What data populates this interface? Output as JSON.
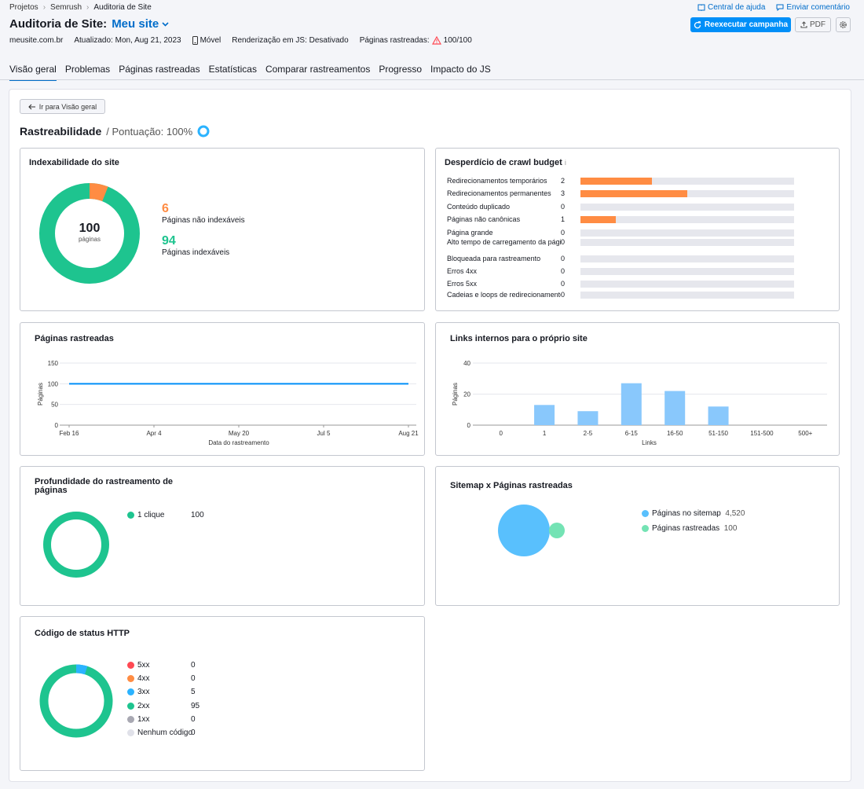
{
  "breadcrumb": [
    "Projetos",
    "Semrush",
    "Auditoria de Site"
  ],
  "top_links": {
    "help": "Central de ajuda",
    "feedback": "Enviar comentário"
  },
  "title": "Auditoria de Site:",
  "site_name": "Meu site",
  "meta": {
    "domain": "meusite.com.br",
    "updated": "Atualizado: Mon, Aug 21, 2023",
    "device": "Móvel",
    "js": "Renderização em JS: Desativado",
    "crawled_label": "Páginas rastreadas:",
    "crawled_value": "100/100"
  },
  "buttons": {
    "rerun": "Reexecutar campanha",
    "pdf": "PDF"
  },
  "tabs": [
    "Visão geral",
    "Problemas",
    "Páginas rastreadas",
    "Estatísticas",
    "Comparar rastreamentos",
    "Progresso",
    "Impacto do JS"
  ],
  "back": "Ir para Visão geral",
  "section": {
    "title": "Rastreabilidade",
    "score": "/ Pontuação: 100%"
  },
  "indexability": {
    "title": "Indexabilidade do site",
    "total": "100",
    "total_label": "páginas",
    "non_index_value": "6",
    "non_index_label": "Páginas não indexáveis",
    "index_value": "94",
    "index_label": "Páginas indexáveis",
    "colors": {
      "non": "#ff8c43",
      "idx": "#1ec48f"
    }
  },
  "crawl_budget": {
    "title": "Desperdício de crawl budget",
    "info": "i",
    "max": 6,
    "rows": [
      {
        "label": "Redirecionamentos temporários",
        "value": 2
      },
      {
        "label": "Redirecionamentos permanentes",
        "value": 3
      },
      {
        "label": "Conteúdo duplicado",
        "value": 0
      },
      {
        "label": "Páginas não canônicas",
        "value": 1
      },
      {
        "label": "Página grande",
        "value": 0
      },
      {
        "label": "Alto tempo de carregamento da página",
        "value": 0
      },
      {
        "label": "Bloqueada para rastreamento",
        "value": 0
      },
      {
        "label": "Erros 4xx",
        "value": 0
      },
      {
        "label": "Erros 5xx",
        "value": 0
      },
      {
        "label": "Cadeias e loops de redirecionamento",
        "value": 0
      }
    ]
  },
  "crawled_pages": {
    "title": "Páginas rastreadas",
    "chart_data": {
      "type": "line",
      "x": [
        "Feb 16",
        "Apr 4",
        "May 20",
        "Jul 5",
        "Aug 21"
      ],
      "series": [
        {
          "values": [
            100,
            100,
            100,
            100,
            100
          ]
        }
      ],
      "yticks": [
        0,
        50,
        100,
        150
      ],
      "ylim": [
        0,
        150
      ],
      "ylabel": "Páginas",
      "xlabel": "Data do rastreamento",
      "color": "#008ff8"
    }
  },
  "internal_links": {
    "title": "Links internos para o próprio site",
    "chart_data": {
      "type": "bar",
      "categories": [
        "0",
        "1",
        "2-5",
        "6-15",
        "16-50",
        "51-150",
        "151-500",
        "500+"
      ],
      "values": [
        0,
        13,
        9,
        27,
        22,
        12,
        0,
        0
      ],
      "yticks": [
        0,
        20,
        40
      ],
      "ylim": [
        0,
        40
      ],
      "ylabel": "Páginas",
      "xlabel": "Links",
      "color": "#89c8fc"
    }
  },
  "depth": {
    "title": "Profundidade do rastreamento de páginas",
    "items": [
      {
        "label": "1 clique",
        "value": "100",
        "color": "#1ec48f"
      }
    ]
  },
  "sitemap": {
    "title": "Sitemap x Páginas rastreadas",
    "items": [
      {
        "label": "Páginas no sitemap",
        "value": "4,520",
        "color": "#59c0fd"
      },
      {
        "label": "Páginas rastreadas",
        "value": "100",
        "color": "#74e3b4"
      }
    ]
  },
  "http": {
    "title": "Código de status HTTP",
    "items": [
      {
        "label": "5xx",
        "value": "0",
        "color": "#ff4953"
      },
      {
        "label": "4xx",
        "value": "0",
        "color": "#ff8c43"
      },
      {
        "label": "3xx",
        "value": "5",
        "color": "#2bb3ff"
      },
      {
        "label": "2xx",
        "value": "95",
        "color": "#1ec48f"
      },
      {
        "label": "1xx",
        "value": "0",
        "color": "#a8a8b2"
      },
      {
        "label": "Nenhum código",
        "value": "0",
        "color": "#e0e1e9"
      }
    ]
  }
}
